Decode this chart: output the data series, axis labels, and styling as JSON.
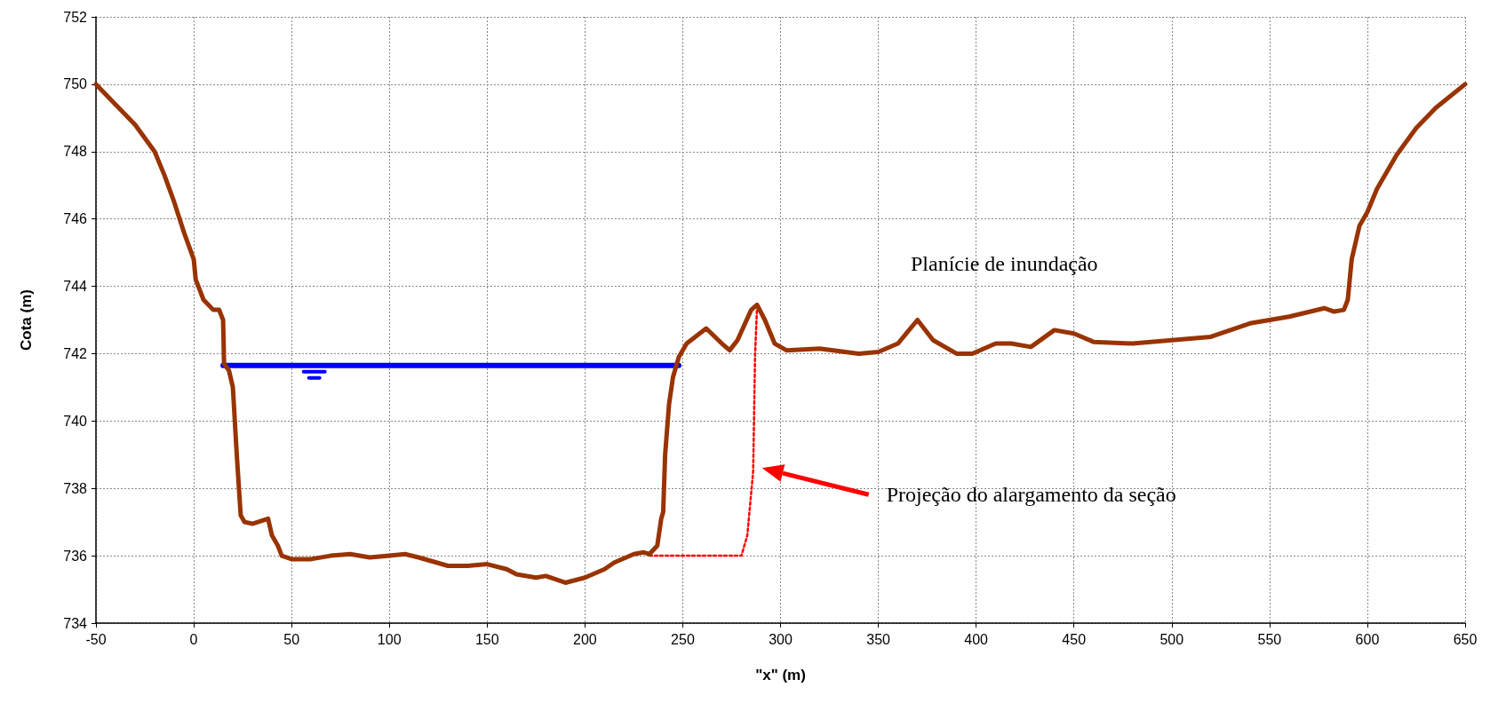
{
  "chart_data": {
    "type": "line",
    "xlabel": "\"x\" (m)",
    "ylabel": "Cota (m)",
    "xlim": [
      -50,
      650
    ],
    "xticks": [
      -50,
      0,
      50,
      100,
      150,
      200,
      250,
      300,
      350,
      400,
      450,
      500,
      550,
      600,
      650
    ],
    "ylim": [
      734,
      752
    ],
    "yticks": [
      734,
      736,
      738,
      740,
      742,
      744,
      746,
      748,
      750,
      752
    ],
    "grid": true,
    "marker": "none",
    "series": [
      {
        "color": "#993300",
        "line_style": "solid",
        "x": [
          -50,
          -40,
          -30,
          -20,
          -15,
          -10,
          -5,
          0,
          1,
          5,
          10,
          13,
          15,
          15.5,
          18,
          20,
          22,
          24,
          26,
          30,
          38,
          40,
          43,
          45,
          50,
          60,
          70,
          80,
          90,
          100,
          108,
          115,
          130,
          140,
          150,
          160,
          165,
          175,
          180,
          190,
          200,
          210,
          215,
          225,
          230,
          233,
          237,
          239,
          240,
          241,
          243,
          245,
          248,
          252,
          262,
          270,
          274,
          278,
          285,
          288,
          292,
          297,
          303,
          320,
          340,
          350,
          360,
          370,
          378,
          390,
          398,
          410,
          418,
          428,
          440,
          450,
          460,
          480,
          500,
          520,
          540,
          560,
          578,
          583,
          588,
          590,
          592,
          596,
          600,
          605,
          615,
          625,
          635,
          650
        ],
        "values": [
          750,
          749.4,
          748.8,
          748,
          747.3,
          746.5,
          745.6,
          744.8,
          744.2,
          743.6,
          743.3,
          743.3,
          743,
          741.7,
          741.5,
          741,
          739,
          737.2,
          737,
          736.95,
          737.1,
          736.6,
          736.3,
          736,
          735.9,
          735.9,
          736,
          736.05,
          735.95,
          736,
          736.05,
          735.95,
          735.7,
          735.7,
          735.75,
          735.6,
          735.45,
          735.35,
          735.4,
          735.2,
          735.35,
          735.6,
          735.8,
          736.05,
          736.1,
          736.05,
          736.3,
          737.1,
          737.3,
          739,
          740.5,
          741.3,
          741.9,
          742.3,
          742.75,
          742.3,
          742.1,
          742.4,
          743.3,
          743.45,
          743,
          742.3,
          742.1,
          742.15,
          742,
          742.05,
          742.3,
          743,
          742.4,
          742,
          742,
          742.3,
          742.3,
          742.2,
          742.7,
          742.6,
          742.35,
          742.3,
          742.4,
          742.5,
          742.9,
          743.1,
          743.35,
          743.25,
          743.3,
          743.6,
          744.8,
          745.8,
          746.2,
          746.9,
          747.9,
          748.7,
          749.3,
          750
        ]
      },
      {
        "color": "#0000ff",
        "line_style": "solid",
        "x": [
          15,
          248
        ],
        "values": [
          741.65,
          741.65
        ]
      },
      {
        "color": "#ff0000",
        "line_style": "dotted",
        "x": [
          233,
          280,
          283,
          286,
          287,
          288
        ],
        "values": [
          736,
          736,
          736.6,
          738.5,
          742,
          743.4
        ]
      }
    ],
    "annotations": [
      "Planície de inundação",
      "Projeção do alargamento da seção"
    ]
  }
}
